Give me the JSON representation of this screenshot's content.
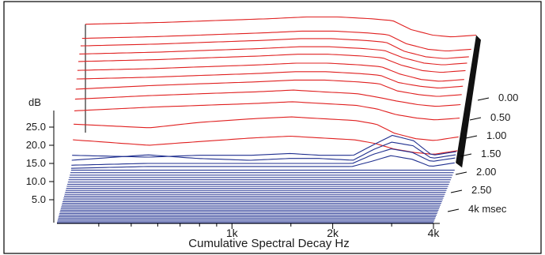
{
  "chart_data": {
    "type": "waterfall",
    "title": "",
    "xlabel": "Cumulative Spectral Decay Hz",
    "ylabel": "dB",
    "zlabel": "msec",
    "x_ticks": [
      {
        "value": 1000,
        "label": "1k"
      },
      {
        "value": 2000,
        "label": "2k"
      },
      {
        "value": 4000,
        "label": "4k"
      }
    ],
    "xlim": [
      300,
      4000
    ],
    "y_ticks": [
      {
        "value": 5,
        "label": "5.0"
      },
      {
        "value": 10,
        "label": "10.0"
      },
      {
        "value": 15,
        "label": "15.0"
      },
      {
        "value": 20,
        "label": "20.0"
      },
      {
        "value": 25,
        "label": "25.0"
      }
    ],
    "ylim": [
      0,
      30
    ],
    "t_ticks": [
      {
        "value": 0.0,
        "label": "0.00"
      },
      {
        "value": 0.5,
        "label": "0.50"
      },
      {
        "value": 1.0,
        "label": "1.00"
      },
      {
        "value": 1.5,
        "label": "1.50"
      },
      {
        "value": 2.0,
        "label": "2.00"
      },
      {
        "value": 2.5,
        "label": "2.50"
      },
      {
        "value": 4.0,
        "label": "4k msec"
      }
    ],
    "series_colors": {
      "early_slices": "#e02020",
      "late_slices": "#1f2f8f",
      "floor": "#1f2f8f"
    },
    "slice_frequencies": [
      300,
      500,
      700,
      1000,
      1300,
      1600,
      2000,
      2300,
      2600,
      3000,
      3400,
      4000
    ],
    "slices": [
      {
        "time": 0.0,
        "values": [
          25.5,
          26.0,
          26.5,
          27.0,
          27.5,
          27.5,
          27.0,
          26.5,
          24.0,
          22.5,
          22.0,
          22.5
        ]
      },
      {
        "time": 0.08,
        "values": [
          25.0,
          25.5,
          26.0,
          26.5,
          27.0,
          27.0,
          26.5,
          26.0,
          23.5,
          22.0,
          21.5,
          22.0
        ]
      },
      {
        "time": 0.16,
        "values": [
          24.5,
          25.0,
          25.5,
          26.0,
          26.5,
          26.5,
          26.0,
          25.5,
          23.0,
          21.5,
          21.0,
          21.5
        ]
      },
      {
        "time": 0.24,
        "values": [
          23.5,
          24.0,
          24.5,
          25.0,
          25.5,
          25.5,
          25.0,
          24.5,
          22.5,
          21.0,
          20.5,
          21.0
        ]
      },
      {
        "time": 0.32,
        "values": [
          22.5,
          23.0,
          23.5,
          24.0,
          24.5,
          24.5,
          24.0,
          23.5,
          21.5,
          20.0,
          19.5,
          20.0
        ]
      },
      {
        "time": 0.4,
        "values": [
          21.0,
          21.5,
          22.0,
          22.5,
          23.0,
          23.0,
          22.5,
          22.0,
          20.0,
          18.5,
          18.0,
          18.5
        ]
      },
      {
        "time": 0.48,
        "values": [
          19.5,
          20.0,
          20.5,
          21.0,
          21.5,
          21.5,
          21.0,
          20.5,
          18.5,
          17.5,
          17.0,
          17.5
        ]
      },
      {
        "time": 0.56,
        "values": [
          17.5,
          18.5,
          19.0,
          19.5,
          20.0,
          20.0,
          19.5,
          19.0,
          17.0,
          16.0,
          15.5,
          16.0
        ]
      },
      {
        "time": 0.64,
        "values": [
          15.5,
          16.5,
          17.0,
          17.5,
          18.0,
          17.5,
          17.0,
          16.0,
          15.0,
          14.0,
          13.5,
          14.0
        ]
      },
      {
        "time": 0.72,
        "values": [
          13.0,
          14.0,
          14.5,
          15.0,
          15.5,
          15.0,
          14.5,
          13.5,
          12.0,
          11.0,
          10.5,
          11.0
        ]
      },
      {
        "time": 0.8,
        "values": [
          10.0,
          9.0,
          10.5,
          11.5,
          12.0,
          11.5,
          11.0,
          10.0,
          7.5,
          6.0,
          5.5,
          6.5
        ]
      },
      {
        "time": 0.9,
        "values": [
          6.5,
          5.0,
          6.0,
          7.0,
          7.5,
          7.0,
          6.5,
          5.5,
          4.0,
          3.0,
          2.5,
          3.5
        ]
      },
      {
        "time": 1.0,
        "values": [
          3.0,
          2.5,
          3.0,
          3.0,
          3.5,
          3.0,
          3.0,
          6.0,
          8.5,
          7.0,
          3.0,
          4.0
        ]
      },
      {
        "time": 1.05,
        "values": [
          2.0,
          3.5,
          2.5,
          2.0,
          2.5,
          2.5,
          2.0,
          5.0,
          7.0,
          6.0,
          2.5,
          3.5
        ]
      },
      {
        "time": 1.1,
        "values": [
          1.0,
          1.5,
          1.5,
          1.5,
          1.5,
          1.5,
          1.5,
          4.0,
          5.5,
          4.5,
          2.0,
          3.0
        ]
      },
      {
        "time": 1.15,
        "values": [
          0.5,
          1.0,
          1.0,
          1.0,
          1.0,
          1.0,
          1.0,
          2.5,
          4.0,
          3.0,
          1.0,
          2.0
        ]
      }
    ]
  }
}
